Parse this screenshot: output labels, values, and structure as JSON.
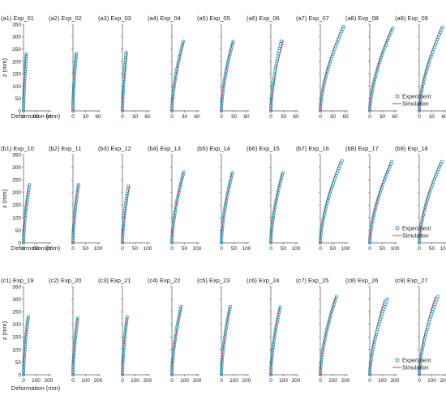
{
  "figure": {
    "y_axis_label": "z (mm)",
    "x_axis_label": "Deformation (mm)",
    "legend": {
      "experiment_label": "Experiment",
      "simulation_label": "Simulation"
    },
    "colors": {
      "experiment": "#1a8fb0",
      "simulation": "#e3343a",
      "axis": "#555555"
    }
  },
  "chart_data": [
    {
      "type": "scatter",
      "title": "(a1) Exp_01",
      "xlim": [
        0,
        60
      ],
      "xticks": [
        0,
        30,
        60
      ],
      "ylim": [
        0,
        350
      ],
      "z_max": 230,
      "exp_defl": 7,
      "sim_defl": 6,
      "series": [
        {
          "name": "Experiment"
        },
        {
          "name": "Simulation"
        }
      ]
    },
    {
      "type": "scatter",
      "title": "(a2) Exp_02",
      "xlim": [
        0,
        60
      ],
      "xticks": [
        0,
        30,
        60
      ],
      "ylim": [
        0,
        350
      ],
      "z_max": 232,
      "exp_defl": 8,
      "sim_defl": 7,
      "series": [
        {
          "name": "Experiment"
        },
        {
          "name": "Simulation"
        }
      ]
    },
    {
      "type": "scatter",
      "title": "(a3) Exp_03",
      "xlim": [
        0,
        60
      ],
      "xticks": [
        0,
        30,
        60
      ],
      "ylim": [
        0,
        350
      ],
      "z_max": 235,
      "exp_defl": 9,
      "sim_defl": 11,
      "series": [
        {
          "name": "Experiment"
        },
        {
          "name": "Simulation"
        }
      ]
    },
    {
      "type": "scatter",
      "title": "(a4) Exp_04",
      "xlim": [
        0,
        60
      ],
      "xticks": [
        0,
        30,
        60
      ],
      "ylim": [
        0,
        350
      ],
      "z_max": 280,
      "exp_defl": 27,
      "sim_defl": 28,
      "series": [
        {
          "name": "Experiment"
        },
        {
          "name": "Simulation"
        }
      ]
    },
    {
      "type": "scatter",
      "title": "(a5) Exp_05",
      "xlim": [
        0,
        60
      ],
      "xticks": [
        0,
        30,
        60
      ],
      "ylim": [
        0,
        350
      ],
      "z_max": 280,
      "exp_defl": 28,
      "sim_defl": 27,
      "series": [
        {
          "name": "Experiment"
        },
        {
          "name": "Simulation"
        }
      ]
    },
    {
      "type": "scatter",
      "title": "(a6) Exp_06",
      "xlim": [
        0,
        60
      ],
      "xticks": [
        0,
        30,
        60
      ],
      "ylim": [
        0,
        350
      ],
      "z_max": 282,
      "exp_defl": 25,
      "sim_defl": 30,
      "series": [
        {
          "name": "Experiment"
        },
        {
          "name": "Simulation"
        }
      ]
    },
    {
      "type": "scatter",
      "title": "(a7) Exp_07",
      "xlim": [
        0,
        60
      ],
      "xticks": [
        0,
        30,
        60
      ],
      "ylim": [
        0,
        350
      ],
      "z_max": 340,
      "exp_defl": 56,
      "sim_defl": 52,
      "series": [
        {
          "name": "Experiment"
        },
        {
          "name": "Simulation"
        }
      ]
    },
    {
      "type": "scatter",
      "title": "(a8) Exp_08",
      "xlim": [
        0,
        60
      ],
      "xticks": [
        0,
        30,
        60
      ],
      "ylim": [
        0,
        350
      ],
      "z_max": 335,
      "exp_defl": 55,
      "sim_defl": 53,
      "series": [
        {
          "name": "Experiment"
        },
        {
          "name": "Simulation"
        }
      ]
    },
    {
      "type": "scatter",
      "title": "(a9) Exp_09",
      "xlim": [
        0,
        60
      ],
      "xticks": [
        0,
        30,
        60
      ],
      "ylim": [
        0,
        350
      ],
      "z_max": 338,
      "exp_defl": 56,
      "sim_defl": 52,
      "series": [
        {
          "name": "Experiment"
        },
        {
          "name": "Simulation"
        }
      ]
    },
    {
      "type": "scatter",
      "title": "(b1) Exp_10",
      "xlim": [
        0,
        100
      ],
      "xticks": [
        0,
        50,
        100
      ],
      "ylim": [
        0,
        350
      ],
      "z_max": 230,
      "exp_defl": 24,
      "sim_defl": 21,
      "series": [
        {
          "name": "Experiment"
        },
        {
          "name": "Simulation"
        }
      ]
    },
    {
      "type": "scatter",
      "title": "(b2) Exp_11",
      "xlim": [
        0,
        100
      ],
      "xticks": [
        0,
        50,
        100
      ],
      "ylim": [
        0,
        350
      ],
      "z_max": 230,
      "exp_defl": 22,
      "sim_defl": 21,
      "series": [
        {
          "name": "Experiment"
        },
        {
          "name": "Simulation"
        }
      ]
    },
    {
      "type": "scatter",
      "title": "(b3) Exp_12",
      "xlim": [
        0,
        100
      ],
      "xticks": [
        0,
        50,
        100
      ],
      "ylim": [
        0,
        350
      ],
      "z_max": 225,
      "exp_defl": 24,
      "sim_defl": 28,
      "series": [
        {
          "name": "Experiment"
        },
        {
          "name": "Simulation"
        }
      ]
    },
    {
      "type": "scatter",
      "title": "(b4) Exp_13",
      "xlim": [
        0,
        100
      ],
      "xticks": [
        0,
        50,
        100
      ],
      "ylim": [
        0,
        350
      ],
      "z_max": 280,
      "exp_defl": 47,
      "sim_defl": 46,
      "series": [
        {
          "name": "Experiment"
        },
        {
          "name": "Simulation"
        }
      ]
    },
    {
      "type": "scatter",
      "title": "(b5) Exp_14",
      "xlim": [
        0,
        100
      ],
      "xticks": [
        0,
        50,
        100
      ],
      "ylim": [
        0,
        350
      ],
      "z_max": 278,
      "exp_defl": 44,
      "sim_defl": 43,
      "series": [
        {
          "name": "Experiment"
        },
        {
          "name": "Simulation"
        }
      ]
    },
    {
      "type": "scatter",
      "title": "(b6) Exp_15",
      "xlim": [
        0,
        100
      ],
      "xticks": [
        0,
        50,
        100
      ],
      "ylim": [
        0,
        350
      ],
      "z_max": 278,
      "exp_defl": 48,
      "sim_defl": 46,
      "series": [
        {
          "name": "Experiment"
        },
        {
          "name": "Simulation"
        }
      ]
    },
    {
      "type": "scatter",
      "title": "(b7) Exp_16",
      "xlim": [
        0,
        100
      ],
      "xticks": [
        0,
        50,
        100
      ],
      "ylim": [
        0,
        350
      ],
      "z_max": 325,
      "exp_defl": 86,
      "sim_defl": 80,
      "series": [
        {
          "name": "Experiment"
        },
        {
          "name": "Simulation"
        }
      ]
    },
    {
      "type": "scatter",
      "title": "(b8) Exp_17",
      "xlim": [
        0,
        100
      ],
      "xticks": [
        0,
        50,
        100
      ],
      "ylim": [
        0,
        350
      ],
      "z_max": 322,
      "exp_defl": 88,
      "sim_defl": 84,
      "series": [
        {
          "name": "Experiment"
        },
        {
          "name": "Simulation"
        }
      ]
    },
    {
      "type": "scatter",
      "title": "(b9) Exp_18",
      "xlim": [
        0,
        100
      ],
      "xticks": [
        0,
        50,
        100
      ],
      "ylim": [
        0,
        350
      ],
      "z_max": 322,
      "exp_defl": 90,
      "sim_defl": 84,
      "series": [
        {
          "name": "Experiment"
        },
        {
          "name": "Simulation"
        }
      ]
    },
    {
      "type": "scatter",
      "title": "(c1) Exp_19",
      "xlim": [
        0,
        200
      ],
      "xticks": [
        0,
        100,
        200
      ],
      "ylim": [
        0,
        350
      ],
      "z_max": 230,
      "exp_defl": 38,
      "sim_defl": 35,
      "series": [
        {
          "name": "Experiment"
        },
        {
          "name": "Simulation"
        }
      ]
    },
    {
      "type": "scatter",
      "title": "(c2) Exp_20",
      "xlim": [
        0,
        200
      ],
      "xticks": [
        0,
        100,
        200
      ],
      "ylim": [
        0,
        350
      ],
      "z_max": 225,
      "exp_defl": 38,
      "sim_defl": 36,
      "series": [
        {
          "name": "Experiment"
        },
        {
          "name": "Simulation"
        }
      ]
    },
    {
      "type": "scatter",
      "title": "(c3) Exp_21",
      "xlim": [
        0,
        200
      ],
      "xticks": [
        0,
        100,
        200
      ],
      "ylim": [
        0,
        350
      ],
      "z_max": 228,
      "exp_defl": 37,
      "sim_defl": 36,
      "series": [
        {
          "name": "Experiment"
        },
        {
          "name": "Simulation"
        }
      ]
    },
    {
      "type": "scatter",
      "title": "(c4) Exp_22",
      "xlim": [
        0,
        200
      ],
      "xticks": [
        0,
        100,
        200
      ],
      "ylim": [
        0,
        350
      ],
      "z_max": 270,
      "exp_defl": 72,
      "sim_defl": 75,
      "series": [
        {
          "name": "Experiment"
        },
        {
          "name": "Simulation"
        }
      ]
    },
    {
      "type": "scatter",
      "title": "(c5) Exp_23",
      "xlim": [
        0,
        200
      ],
      "xticks": [
        0,
        100,
        200
      ],
      "ylim": [
        0,
        350
      ],
      "z_max": 270,
      "exp_defl": 70,
      "sim_defl": 68,
      "series": [
        {
          "name": "Experiment"
        },
        {
          "name": "Simulation"
        }
      ]
    },
    {
      "type": "scatter",
      "title": "(c6) Exp_24",
      "xlim": [
        0,
        200
      ],
      "xticks": [
        0,
        100,
        200
      ],
      "ylim": [
        0,
        350
      ],
      "z_max": 268,
      "exp_defl": 74,
      "sim_defl": 71,
      "series": [
        {
          "name": "Experiment"
        },
        {
          "name": "Simulation"
        }
      ]
    },
    {
      "type": "scatter",
      "title": "(c7) Exp_25",
      "xlim": [
        0,
        200
      ],
      "xticks": [
        0,
        100,
        200
      ],
      "ylim": [
        0,
        350
      ],
      "z_max": 310,
      "exp_defl": 128,
      "sim_defl": 125,
      "series": [
        {
          "name": "Experiment"
        },
        {
          "name": "Simulation"
        }
      ]
    },
    {
      "type": "scatter",
      "title": "(c8) Exp_26",
      "xlim": [
        0,
        200
      ],
      "xticks": [
        0,
        100,
        200
      ],
      "ylim": [
        0,
        350
      ],
      "z_max": 300,
      "exp_defl": 140,
      "sim_defl": 118,
      "series": [
        {
          "name": "Experiment"
        },
        {
          "name": "Simulation"
        }
      ]
    },
    {
      "type": "scatter",
      "title": "(c9) Exp_27",
      "xlim": [
        0,
        200
      ],
      "xticks": [
        0,
        100,
        200
      ],
      "ylim": [
        0,
        350
      ],
      "z_max": 310,
      "exp_defl": 148,
      "sim_defl": 128,
      "series": [
        {
          "name": "Experiment"
        },
        {
          "name": "Simulation"
        }
      ]
    }
  ]
}
